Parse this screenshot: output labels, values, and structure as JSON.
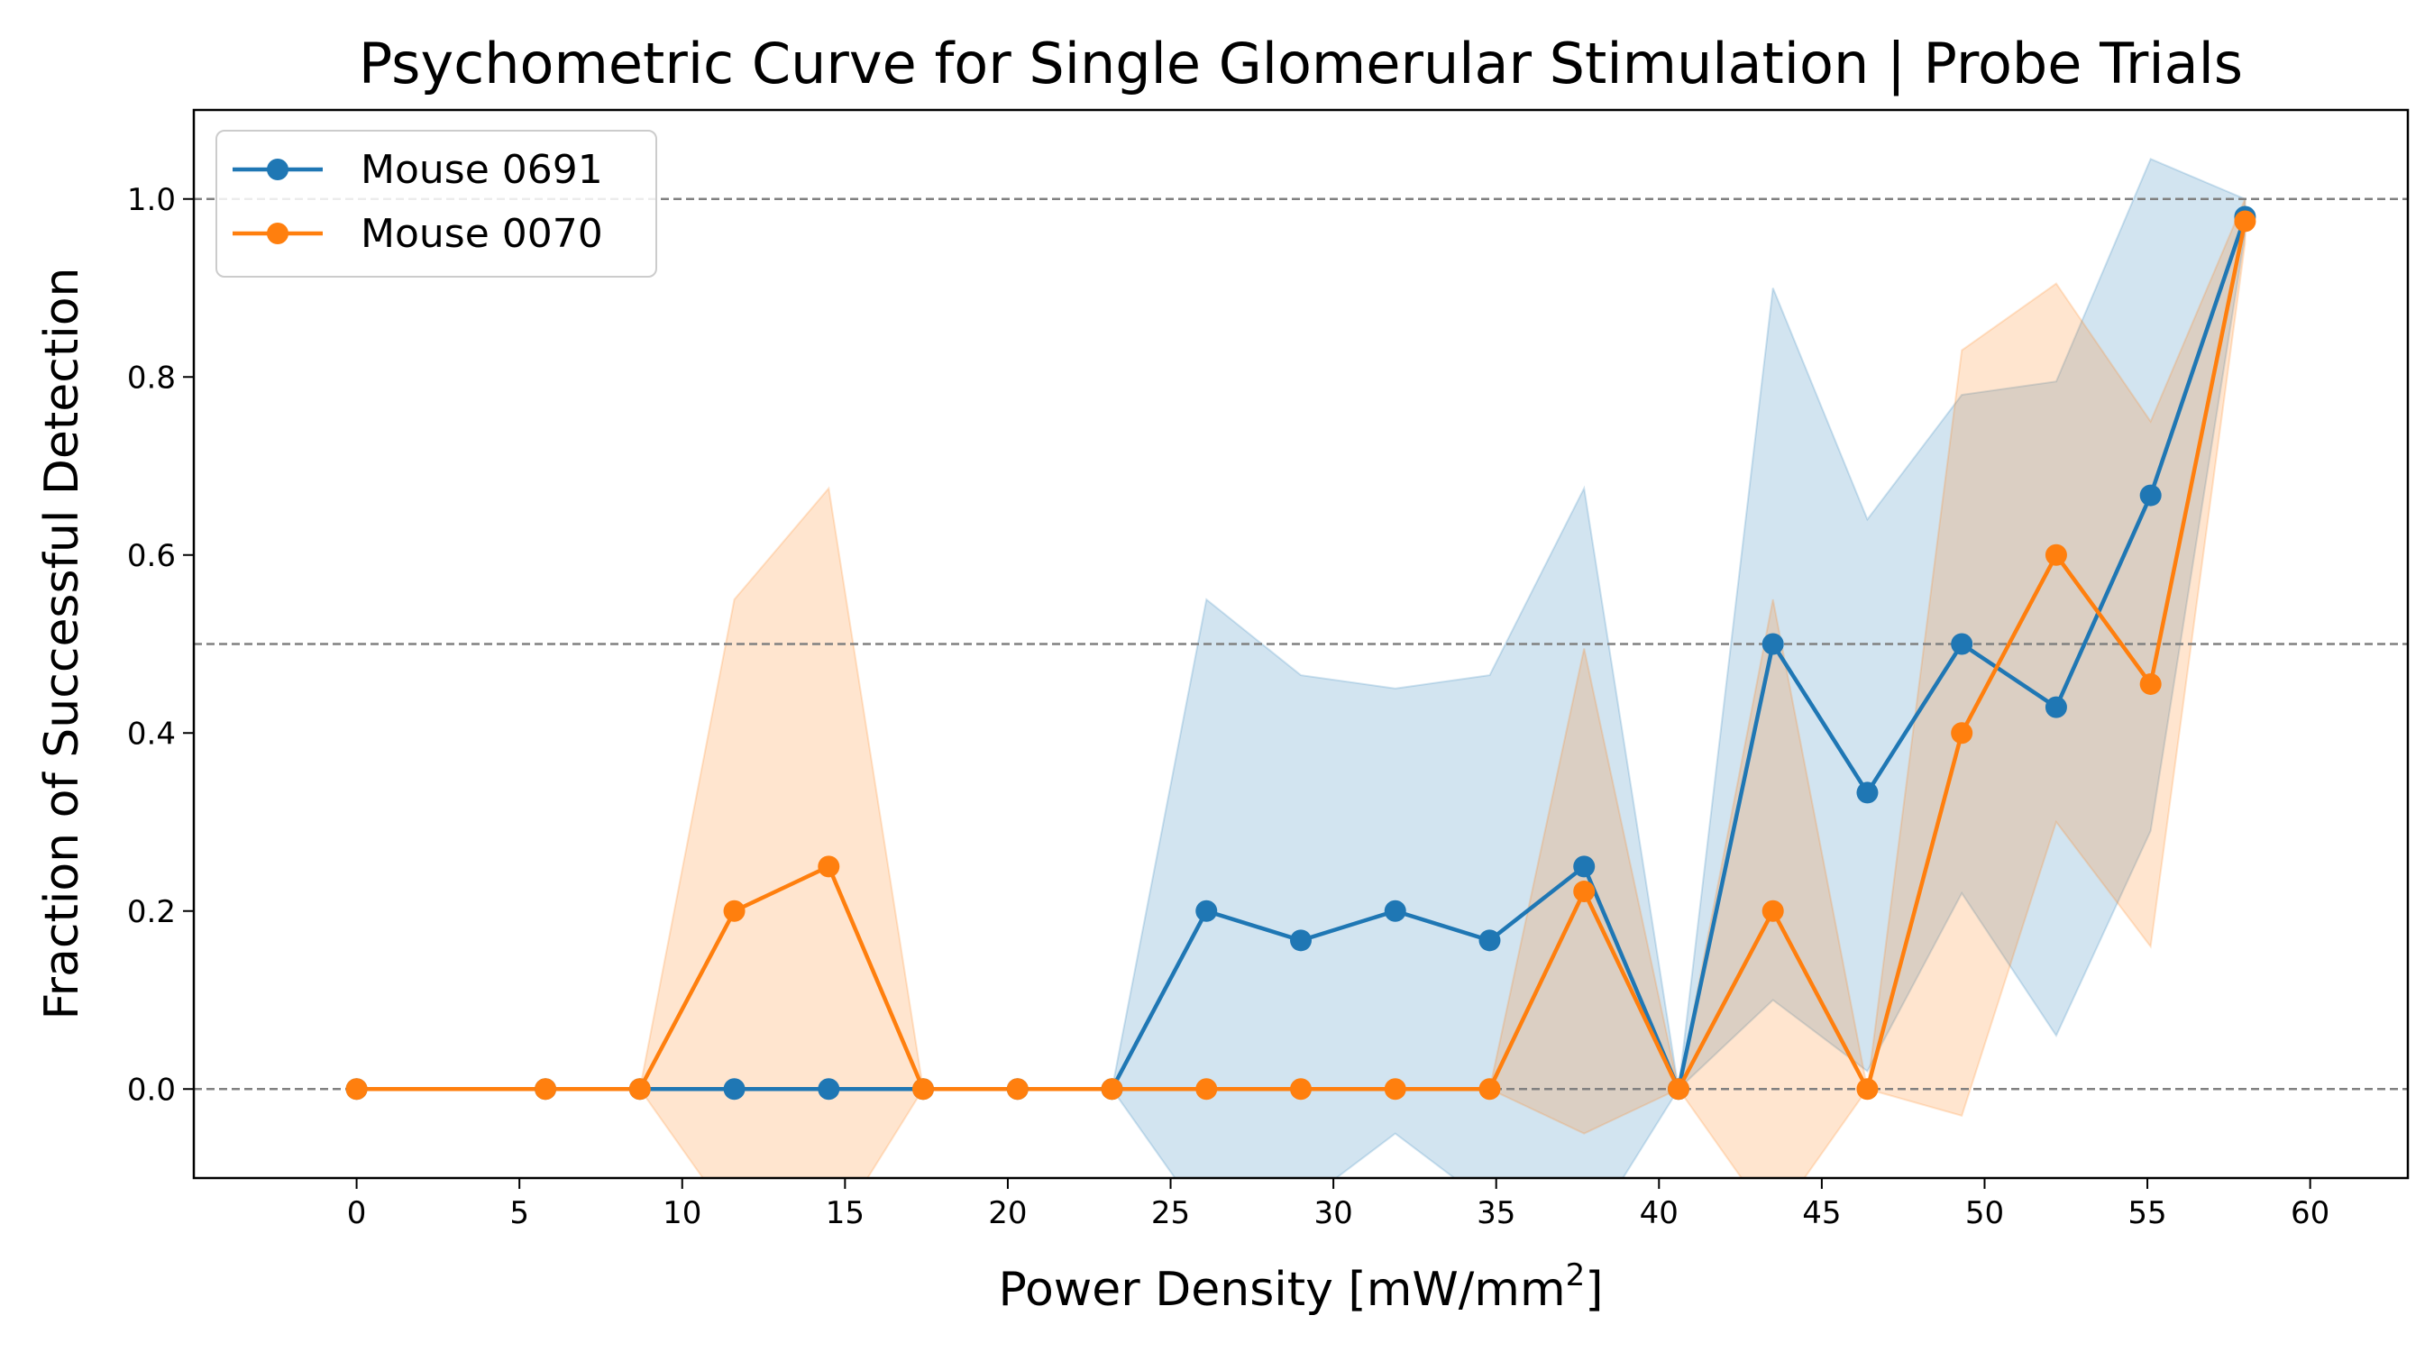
{
  "chart_data": {
    "type": "line",
    "title": "Psychometric Curve for Single Glomerular Stimulation | Probe Trials",
    "xlabel_main": "Power Density [mW/mm",
    "xlabel_sup": "2",
    "xlabel_close": "]",
    "ylabel": "Fraction of Successful Detection",
    "xlim": [
      -5,
      63
    ],
    "ylim": [
      -0.1,
      1.1
    ],
    "xticks": [
      0,
      5,
      10,
      15,
      20,
      25,
      30,
      35,
      40,
      45,
      50,
      55,
      60
    ],
    "xtick_labels": [
      "0",
      "5",
      "10",
      "15",
      "20",
      "25",
      "30",
      "35",
      "40",
      "45",
      "50",
      "55",
      "60"
    ],
    "yticks": [
      0.0,
      0.2,
      0.4,
      0.6,
      0.8,
      1.0
    ],
    "ytick_labels": [
      "0.0",
      "0.2",
      "0.4",
      "0.6",
      "0.8",
      "1.0"
    ],
    "reference_lines": [
      0.0,
      0.5,
      1.0
    ],
    "legend_position": "upper-left",
    "series": [
      {
        "name": "Mouse 0691",
        "color": "#1f77b4",
        "x": [
          0.0,
          5.8,
          8.7,
          11.6,
          14.5,
          17.4,
          20.3,
          23.2,
          26.1,
          29.0,
          31.9,
          34.8,
          37.7,
          40.6,
          43.5,
          46.4,
          49.3,
          52.2,
          55.1,
          58.0
        ],
        "y": [
          0.0,
          0.0,
          0.0,
          0.0,
          0.0,
          0.0,
          0.0,
          0.0,
          0.2,
          0.167,
          0.2,
          0.167,
          0.25,
          0.0,
          0.5,
          0.333,
          0.5,
          0.429,
          0.667,
          0.98
        ],
        "lower": [
          0.0,
          0.0,
          0.0,
          0.0,
          0.0,
          0.0,
          0.0,
          0.0,
          -0.15,
          -0.13,
          -0.05,
          -0.13,
          -0.17,
          0.0,
          0.1,
          0.02,
          0.22,
          0.06,
          0.29,
          0.96
        ],
        "upper": [
          0.0,
          0.0,
          0.0,
          0.0,
          0.0,
          0.0,
          0.0,
          0.0,
          0.55,
          0.465,
          0.45,
          0.465,
          0.675,
          0.0,
          0.9,
          0.64,
          0.78,
          0.795,
          1.045,
          1.0
        ]
      },
      {
        "name": "Mouse 0070",
        "color": "#ff7f0e",
        "x": [
          0.0,
          5.8,
          8.7,
          11.6,
          14.5,
          17.4,
          20.3,
          23.2,
          26.1,
          29.0,
          31.9,
          34.8,
          37.7,
          40.6,
          43.5,
          46.4,
          49.3,
          52.2,
          55.1,
          58.0
        ],
        "y": [
          0.0,
          0.0,
          0.0,
          0.2,
          0.25,
          0.0,
          0.0,
          0.0,
          0.0,
          0.0,
          0.0,
          0.0,
          0.222,
          0.0,
          0.2,
          0.0,
          0.4,
          0.6,
          0.455,
          0.975
        ],
        "lower": [
          0.0,
          0.0,
          0.0,
          -0.15,
          -0.17,
          0.0,
          0.0,
          0.0,
          0.0,
          0.0,
          0.0,
          0.0,
          -0.05,
          0.0,
          -0.15,
          0.0,
          -0.03,
          0.3,
          0.16,
          0.95
        ],
        "upper": [
          0.0,
          0.0,
          0.0,
          0.55,
          0.675,
          0.0,
          0.0,
          0.0,
          0.0,
          0.0,
          0.0,
          0.0,
          0.495,
          0.0,
          0.55,
          0.0,
          0.83,
          0.905,
          0.75,
          1.0
        ]
      }
    ]
  }
}
